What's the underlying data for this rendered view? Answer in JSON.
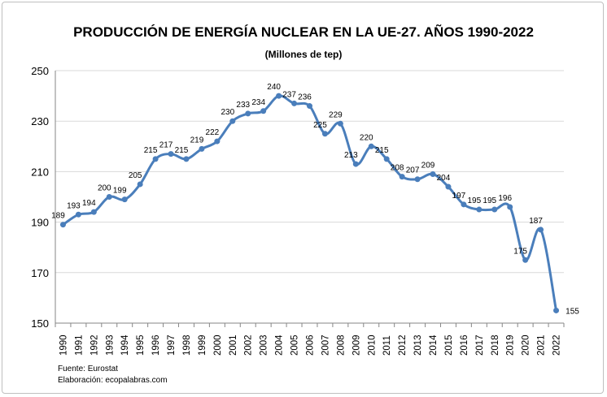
{
  "chart_data": {
    "type": "line",
    "title": "PRODUCCIÓN DE ENERGÍA NUCLEAR EN LA UE-27. AÑOS 1990-2022",
    "subtitle": "(Millones de tep)",
    "xlabel": "",
    "ylabel": "",
    "ylim": [
      150,
      250
    ],
    "yticks": [
      150,
      170,
      190,
      210,
      230,
      250
    ],
    "grid": true,
    "smooth": true,
    "color": "#4a7ebb",
    "categories": [
      "1990",
      "1991",
      "1992",
      "1993",
      "1994",
      "1995",
      "1996",
      "1997",
      "1998",
      "1999",
      "2000",
      "2001",
      "2002",
      "2003",
      "2004",
      "2005",
      "2006",
      "2007",
      "2008",
      "2009",
      "2010",
      "2011",
      "2012",
      "2013",
      "2014",
      "2015",
      "2016",
      "2017",
      "2018",
      "2019",
      "2020",
      "2021",
      "2022"
    ],
    "values": [
      189,
      193,
      194,
      200,
      199,
      205,
      215,
      217,
      215,
      219,
      222,
      230,
      233,
      234,
      240,
      237,
      236,
      225,
      229,
      213,
      220,
      215,
      208,
      207,
      209,
      204,
      197,
      195,
      195,
      196,
      175,
      187,
      155
    ]
  },
  "footer": {
    "source": "Fuente: Eurostat",
    "credit": "Elaboración: ecopalabras.com"
  }
}
